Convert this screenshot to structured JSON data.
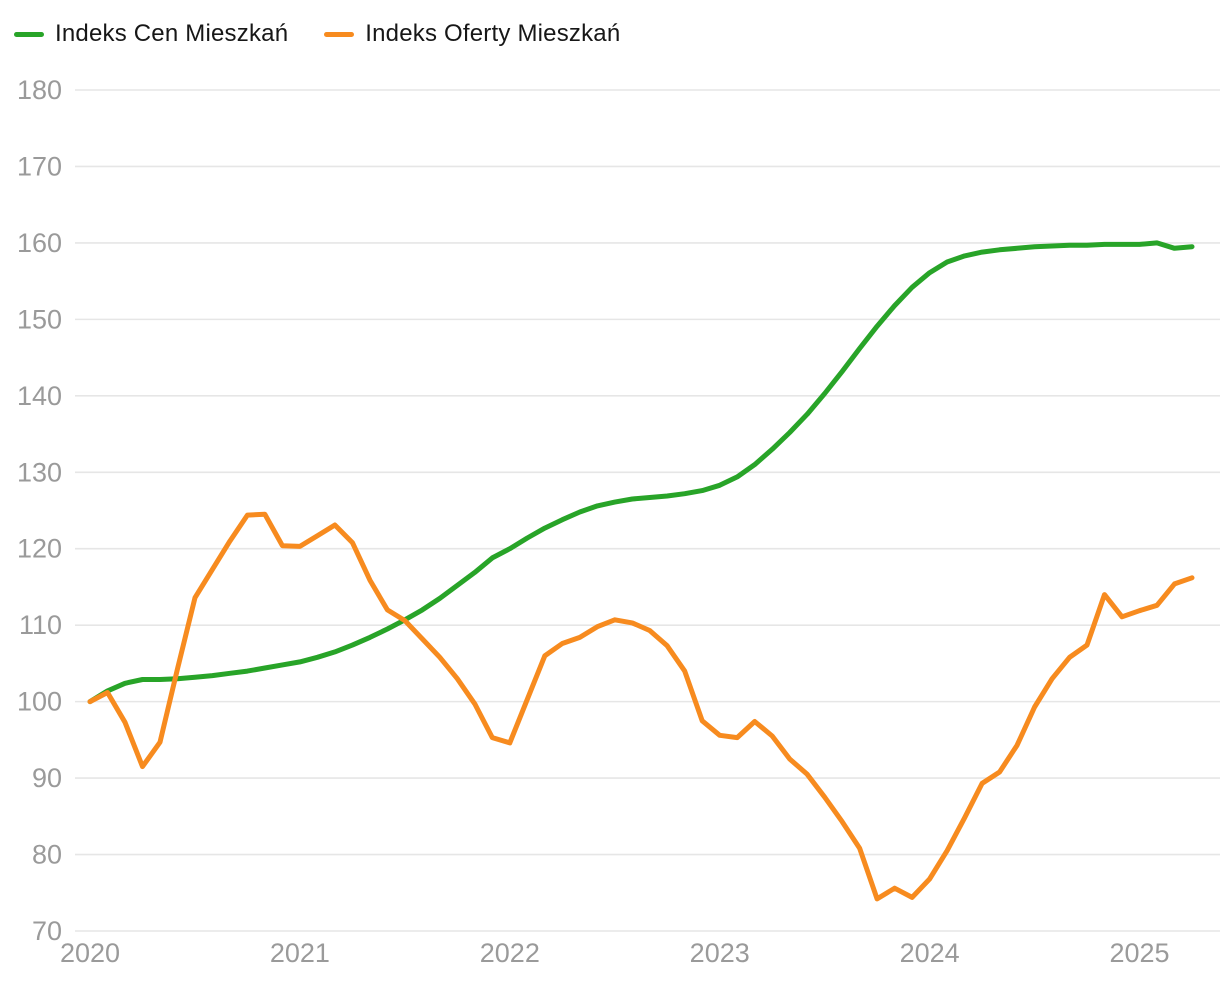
{
  "legend": {
    "items": [
      {
        "label": "Indeks Cen Mieszkań",
        "color": "#28a428"
      },
      {
        "label": "Indeks Oferty Mieszkań",
        "color": "#f78b1f"
      }
    ]
  },
  "chart_data": {
    "type": "line",
    "title": "",
    "xlabel": "",
    "ylabel": "",
    "x_start": "2020-01",
    "x_frequency": "monthly",
    "n_points": 64,
    "x_tick_labels": [
      "2020",
      "2021",
      "2022",
      "2023",
      "2024",
      "2025"
    ],
    "y_ticks": [
      70,
      80,
      90,
      100,
      110,
      120,
      130,
      140,
      150,
      160,
      170,
      180
    ],
    "ylim": [
      70,
      180
    ],
    "grid": "horizontal-only",
    "gridline_color": "#e6e6e6",
    "axis_label_color": "#9a9a9a",
    "legend_position": "top-left",
    "series": [
      {
        "name": "Indeks Cen Mieszkań",
        "color": "#28a428",
        "values": [
          100.0,
          101.4,
          102.4,
          102.9,
          102.9,
          103.0,
          103.2,
          103.4,
          103.7,
          104.0,
          104.4,
          104.8,
          105.2,
          105.8,
          106.5,
          107.4,
          108.4,
          109.5,
          110.7,
          112.0,
          113.5,
          115.2,
          116.9,
          118.8,
          120.0,
          121.4,
          122.7,
          123.8,
          124.8,
          125.6,
          126.1,
          126.5,
          126.7,
          126.9,
          127.2,
          127.6,
          128.3,
          129.4,
          131.0,
          133.0,
          135.2,
          137.6,
          140.3,
          143.2,
          146.2,
          149.1,
          151.8,
          154.2,
          156.1,
          157.5,
          158.3,
          158.8,
          159.1,
          159.3,
          159.5,
          159.6,
          159.7,
          159.7,
          159.8,
          159.8,
          159.8,
          160.0,
          159.3,
          159.5
        ]
      },
      {
        "name": "Indeks Oferty Mieszkań",
        "color": "#f78b1f",
        "values": [
          100.0,
          101.2,
          97.3,
          91.5,
          94.7,
          104.3,
          113.6,
          117.3,
          121.0,
          124.4,
          124.5,
          120.4,
          120.3,
          121.7,
          123.1,
          120.8,
          115.9,
          112.0,
          110.6,
          108.2,
          105.8,
          103.0,
          99.7,
          95.3,
          94.6,
          100.3,
          106.0,
          107.6,
          108.4,
          109.8,
          110.7,
          110.3,
          109.3,
          107.3,
          104.0,
          97.5,
          95.6,
          95.3,
          97.4,
          95.5,
          92.5,
          90.5,
          87.5,
          84.3,
          80.8,
          74.2,
          75.6,
          74.4,
          76.8,
          80.5,
          84.8,
          89.3,
          90.8,
          94.3,
          99.3,
          103.0,
          105.8,
          107.4,
          114.0,
          111.1,
          111.9,
          112.6,
          115.4,
          116.2
        ]
      }
    ]
  }
}
